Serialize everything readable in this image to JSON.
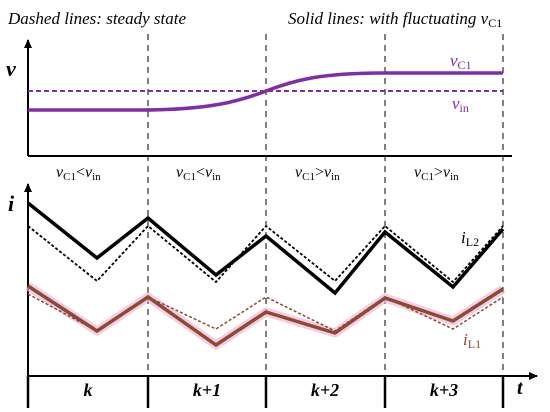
{
  "header": {
    "dashed_note": "Dashed lines: steady state",
    "solid_note_prefix": "Solid lines: with fluctuating ",
    "solid_note_var": "v",
    "solid_note_sub": "C1"
  },
  "top_panel": {
    "axis_label": "v",
    "vc1_label": "v",
    "vc1_sub": "C1",
    "vin_label": "v",
    "vin_sub": "in",
    "vc1_color": "#7f2fa0",
    "vin_color": "#7f2fa0"
  },
  "conditions": [
    {
      "left": "v",
      "left_sub": "C1",
      "op": "<",
      "right": "v",
      "right_sub": "in"
    },
    {
      "left": "v",
      "left_sub": "C1",
      "op": "<",
      "right": "v",
      "right_sub": "in"
    },
    {
      "left": "v",
      "left_sub": "C1",
      "op": ">",
      "right": "v",
      "right_sub": "in"
    },
    {
      "left": "v",
      "left_sub": "C1",
      "op": ">",
      "right": "v",
      "right_sub": "in"
    }
  ],
  "bottom_panel": {
    "axis_label": "i",
    "il2_label": "i",
    "il2_sub": "L2",
    "il1_label": "i",
    "il1_sub": "L1",
    "il2_color": "#000000",
    "il1_color": "#8b4a32",
    "il1_glow": "#f0b8d8"
  },
  "time_axis": {
    "label": "t",
    "periods": [
      "k",
      "k+1",
      "k+2",
      "k+3"
    ]
  }
}
